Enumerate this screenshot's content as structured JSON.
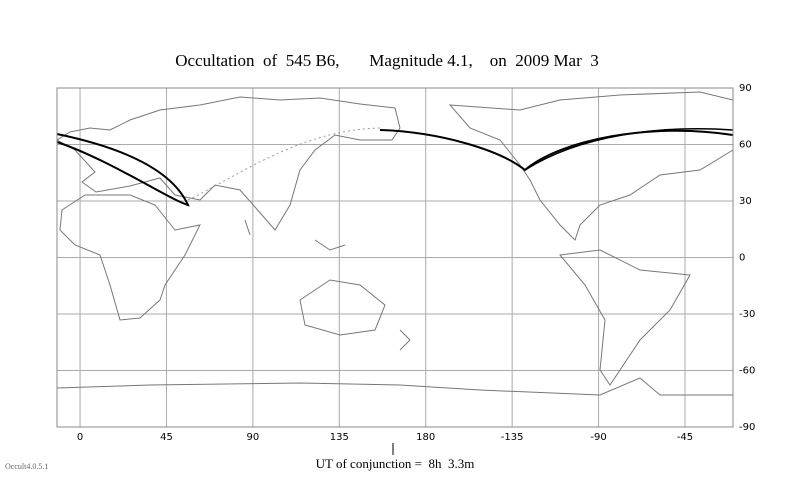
{
  "title": "Occultation  of  545 B6,       Magnitude 4.1,    on  2009 Mar  3",
  "map": {
    "xticks": [
      0,
      45,
      90,
      135,
      180,
      -135,
      -90,
      -45
    ],
    "yticks": [
      90,
      60,
      30,
      0,
      -30,
      -60,
      -90
    ]
  },
  "conjunction": "UT of conjunction =  8h  3.3m",
  "version": "Occult4.0.5.1"
}
